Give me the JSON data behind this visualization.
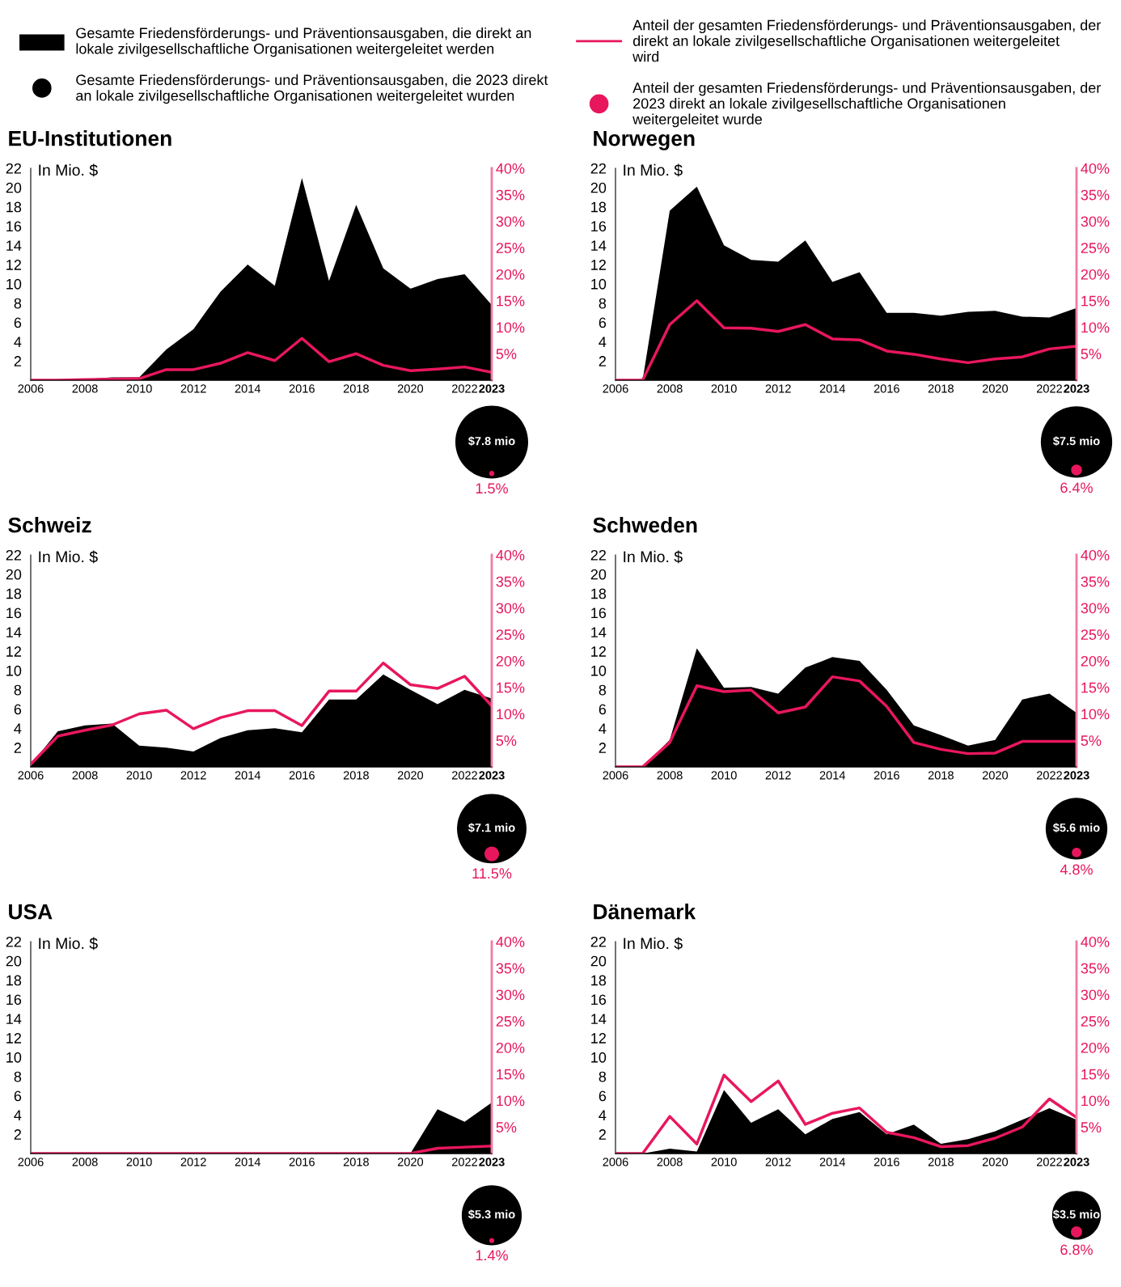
{
  "chart_data": [
    {
      "type": "area",
      "title": "EU-Institutionen",
      "ylabel": "In Mio. $",
      "legend": "top",
      "xlim": [
        2006,
        2023
      ],
      "ylim": [
        0,
        22
      ],
      "y2lim": [
        0,
        40
      ],
      "x": [
        2006,
        2007,
        2008,
        2009,
        2010,
        2011,
        2012,
        2013,
        2014,
        2015,
        2016,
        2017,
        2018,
        2019,
        2020,
        2021,
        2022,
        2023
      ],
      "xticks": [
        2006,
        2008,
        2010,
        2012,
        2014,
        2016,
        2018,
        2020,
        2022,
        2023
      ],
      "yticks": [
        2,
        4,
        6,
        8,
        10,
        12,
        14,
        16,
        18,
        20,
        22
      ],
      "y2ticks": [
        {
          "value": 5,
          "label": "5%"
        },
        {
          "value": 10,
          "label": "10%"
        },
        {
          "value": 15,
          "label": "15%"
        },
        {
          "value": 20,
          "label": "20%"
        },
        {
          "value": 25,
          "label": "25%"
        },
        {
          "value": 30,
          "label": "30%"
        },
        {
          "value": 35,
          "label": "35%"
        },
        {
          "value": 40,
          "label": "40%"
        }
      ],
      "annotations": [
        "$7.8 mio",
        "1.5%",
        "Gesamte Friedensförderungs- und Präventionsausgaben, die 2023 direkt an lokale zivilgesellschaftliche Organisationen weitergeleitet wurden",
        "Anteil der gesamten Friedensförderungs- und Präventionsausgaben, der 2023 direkt an lokale zivilgesellschaftliche Organisationen weitergeleitet wurde"
      ],
      "series": [
        {
          "name": "Gesamte Friedensförderungs- und Präventionsausgaben, die direkt an lokale zivilgesellschaftliche Organisationen weitergeleitet werden",
          "color": "#000000",
          "values": [
            0,
            0,
            0.1,
            0.3,
            0.3,
            3.2,
            5.3,
            9.2,
            12.0,
            9.8,
            21.0,
            10.3,
            18.2,
            11.6,
            9.5,
            10.5,
            11.0,
            7.8
          ]
        },
        {
          "type": "line",
          "axis": "y2",
          "name": "Anteil der gesamten Friedensförderungs- und Präventionsausgaben, der direkt an lokale zivilgesellschaftliche Organisationen weitergeleitet wird",
          "color": "#e8175d",
          "values": [
            0,
            0,
            0.1,
            0.2,
            0.3,
            2.0,
            2.0,
            3.2,
            5.2,
            3.7,
            7.9,
            3.5,
            5.0,
            2.8,
            1.8,
            2.1,
            2.5,
            1.5
          ]
        }
      ]
    },
    {
      "type": "area",
      "title": "Norwegen",
      "ylabel": "In Mio. $",
      "xlim": [
        2006,
        2023
      ],
      "ylim": [
        0,
        22
      ],
      "y2lim": [
        0,
        40
      ],
      "x": [
        2006,
        2007,
        2008,
        2009,
        2010,
        2011,
        2012,
        2013,
        2014,
        2015,
        2016,
        2017,
        2018,
        2019,
        2020,
        2021,
        2022,
        2023
      ],
      "xticks": [
        2006,
        2008,
        2010,
        2012,
        2014,
        2016,
        2018,
        2020,
        2022,
        2023
      ],
      "yticks": [
        2,
        4,
        6,
        8,
        10,
        12,
        14,
        16,
        18,
        20,
        22
      ],
      "y2ticks": [
        {
          "value": 5,
          "label": "5%"
        },
        {
          "value": 10,
          "label": "10%"
        },
        {
          "value": 15,
          "label": "15%"
        },
        {
          "value": 20,
          "label": "20%"
        },
        {
          "value": 25,
          "label": "25%"
        },
        {
          "value": 30,
          "label": "30%"
        },
        {
          "value": 35,
          "label": "35%"
        },
        {
          "value": 40,
          "label": "40%"
        }
      ],
      "annotations": [
        "$7.5 mio",
        "6.4%"
      ],
      "series": [
        {
          "color": "#000000",
          "values": [
            0,
            0,
            17.6,
            20.1,
            14.0,
            12.5,
            12.3,
            14.5,
            10.2,
            11.2,
            7.0,
            7.0,
            6.7,
            7.1,
            7.2,
            6.6,
            6.5,
            7.5
          ]
        },
        {
          "type": "line",
          "axis": "y2",
          "color": "#e8175d",
          "values": [
            0,
            0,
            10.5,
            15.0,
            9.9,
            9.8,
            9.2,
            10.5,
            7.8,
            7.6,
            5.5,
            4.9,
            4.0,
            3.3,
            4.0,
            4.4,
            5.9,
            6.4
          ]
        }
      ]
    },
    {
      "type": "area",
      "title": "Schweiz",
      "ylabel": "In Mio. $",
      "xlim": [
        2006,
        2023
      ],
      "ylim": [
        0,
        22
      ],
      "y2lim": [
        0,
        40
      ],
      "x": [
        2006,
        2007,
        2008,
        2009,
        2010,
        2011,
        2012,
        2013,
        2014,
        2015,
        2016,
        2017,
        2018,
        2019,
        2020,
        2021,
        2022,
        2023
      ],
      "xticks": [
        2006,
        2008,
        2010,
        2012,
        2014,
        2016,
        2018,
        2020,
        2022,
        2023
      ],
      "yticks": [
        2,
        4,
        6,
        8,
        10,
        12,
        14,
        16,
        18,
        20,
        22
      ],
      "y2ticks": [
        {
          "value": 5,
          "label": "5%"
        },
        {
          "value": 10,
          "label": "10%"
        },
        {
          "value": 15,
          "label": "15%"
        },
        {
          "value": 20,
          "label": "20%"
        },
        {
          "value": 25,
          "label": "25%"
        },
        {
          "value": 30,
          "label": "30%"
        },
        {
          "value": 35,
          "label": "35%"
        },
        {
          "value": 40,
          "label": "40%"
        }
      ],
      "annotations": [
        "$7.1 mio",
        "11.5%"
      ],
      "series": [
        {
          "color": "#000000",
          "values": [
            0.2,
            3.7,
            4.3,
            4.5,
            2.2,
            2.0,
            1.6,
            3.0,
            3.8,
            4.0,
            3.6,
            7.0,
            7.0,
            9.6,
            8.0,
            6.5,
            8.0,
            7.1
          ]
        },
        {
          "type": "line",
          "axis": "y2",
          "color": "#e8175d",
          "values": [
            0.5,
            5.8,
            6.9,
            7.9,
            10.0,
            10.7,
            7.2,
            9.3,
            10.6,
            10.6,
            7.8,
            14.3,
            14.3,
            19.6,
            15.5,
            14.8,
            17.1,
            11.5
          ]
        }
      ]
    },
    {
      "type": "area",
      "title": "Schweden",
      "ylabel": "In Mio. $",
      "xlim": [
        2006,
        2023
      ],
      "ylim": [
        0,
        22
      ],
      "y2lim": [
        0,
        40
      ],
      "x": [
        2006,
        2007,
        2008,
        2009,
        2010,
        2011,
        2012,
        2013,
        2014,
        2015,
        2016,
        2017,
        2018,
        2019,
        2020,
        2021,
        2022,
        2023
      ],
      "xticks": [
        2006,
        2008,
        2010,
        2012,
        2014,
        2016,
        2018,
        2020,
        2022,
        2023
      ],
      "yticks": [
        2,
        4,
        6,
        8,
        10,
        12,
        14,
        16,
        18,
        20,
        22
      ],
      "y2ticks": [
        {
          "value": 5,
          "label": "5%"
        },
        {
          "value": 10,
          "label": "10%"
        },
        {
          "value": 15,
          "label": "15%"
        },
        {
          "value": 20,
          "label": "20%"
        },
        {
          "value": 25,
          "label": "25%"
        },
        {
          "value": 30,
          "label": "30%"
        },
        {
          "value": 35,
          "label": "35%"
        },
        {
          "value": 40,
          "label": "40%"
        }
      ],
      "annotations": [
        "$5.6 mio",
        "4.8%"
      ],
      "series": [
        {
          "color": "#000000",
          "values": [
            0,
            0,
            2.8,
            12.3,
            8.2,
            8.3,
            7.6,
            10.3,
            11.4,
            11.0,
            8.0,
            4.3,
            3.3,
            2.2,
            2.8,
            7.0,
            7.6,
            5.6
          ]
        },
        {
          "type": "line",
          "axis": "y2",
          "color": "#e8175d",
          "values": [
            0,
            0,
            4.6,
            15.3,
            14.2,
            14.5,
            10.2,
            11.3,
            17.0,
            16.2,
            11.4,
            4.6,
            3.3,
            2.5,
            2.6,
            4.8,
            4.8,
            4.8
          ]
        }
      ]
    },
    {
      "type": "area",
      "title": "USA",
      "ylabel": "In Mio. $",
      "xlim": [
        2006,
        2023
      ],
      "ylim": [
        0,
        22
      ],
      "y2lim": [
        0,
        40
      ],
      "x": [
        2006,
        2007,
        2008,
        2009,
        2010,
        2011,
        2012,
        2013,
        2014,
        2015,
        2016,
        2017,
        2018,
        2019,
        2020,
        2021,
        2022,
        2023
      ],
      "xticks": [
        2006,
        2008,
        2010,
        2012,
        2014,
        2016,
        2018,
        2020,
        2022,
        2023
      ],
      "yticks": [
        2,
        4,
        6,
        8,
        10,
        12,
        14,
        16,
        18,
        20,
        22
      ],
      "y2ticks": [
        {
          "value": 5,
          "label": "5%"
        },
        {
          "value": 10,
          "label": "10%"
        },
        {
          "value": 15,
          "label": "15%"
        },
        {
          "value": 20,
          "label": "20%"
        },
        {
          "value": 25,
          "label": "25%"
        },
        {
          "value": 30,
          "label": "30%"
        },
        {
          "value": 35,
          "label": "35%"
        },
        {
          "value": 40,
          "label": "40%"
        }
      ],
      "annotations": [
        "$5.3 mio",
        "1.4%"
      ],
      "series": [
        {
          "color": "#000000",
          "values": [
            0,
            0,
            0,
            0,
            0,
            0,
            0,
            0,
            0,
            0,
            0,
            0,
            0,
            0,
            0,
            4.6,
            3.3,
            5.3
          ]
        },
        {
          "type": "line",
          "axis": "y2",
          "color": "#e8175d",
          "values": [
            0,
            0,
            0,
            0,
            0,
            0,
            0,
            0,
            0,
            0,
            0,
            0,
            0,
            0,
            0,
            1.0,
            1.2,
            1.4
          ]
        }
      ]
    },
    {
      "type": "area",
      "title": "Dänemark",
      "ylabel": "In Mio. $",
      "xlim": [
        2006,
        2023
      ],
      "ylim": [
        0,
        22
      ],
      "y2lim": [
        0,
        40
      ],
      "x": [
        2006,
        2007,
        2008,
        2009,
        2010,
        2011,
        2012,
        2013,
        2014,
        2015,
        2016,
        2017,
        2018,
        2019,
        2020,
        2021,
        2022,
        2023
      ],
      "xticks": [
        2006,
        2008,
        2010,
        2012,
        2014,
        2016,
        2018,
        2020,
        2022,
        2023
      ],
      "yticks": [
        2,
        4,
        6,
        8,
        10,
        12,
        14,
        16,
        18,
        20,
        22
      ],
      "y2ticks": [
        {
          "value": 5,
          "label": "5%"
        },
        {
          "value": 10,
          "label": "10%"
        },
        {
          "value": 15,
          "label": "15%"
        },
        {
          "value": 20,
          "label": "20%"
        },
        {
          "value": 25,
          "label": "25%"
        },
        {
          "value": 30,
          "label": "30%"
        },
        {
          "value": 35,
          "label": "35%"
        },
        {
          "value": 40,
          "label": "40%"
        }
      ],
      "annotations": [
        "$3.5 mio",
        "6.8%"
      ],
      "series": [
        {
          "color": "#000000",
          "values": [
            0,
            0,
            0.5,
            0.2,
            6.6,
            3.2,
            4.6,
            2.0,
            3.6,
            4.3,
            2.0,
            3.0,
            1.0,
            1.5,
            2.3,
            3.5,
            4.7,
            3.5
          ]
        },
        {
          "type": "line",
          "axis": "y2",
          "color": "#e8175d",
          "values": [
            0,
            0,
            7.0,
            1.8,
            14.8,
            9.8,
            13.7,
            5.5,
            7.6,
            8.6,
            4.0,
            3.0,
            1.3,
            1.5,
            2.9,
            5.0,
            10.3,
            6.8
          ]
        }
      ]
    }
  ]
}
